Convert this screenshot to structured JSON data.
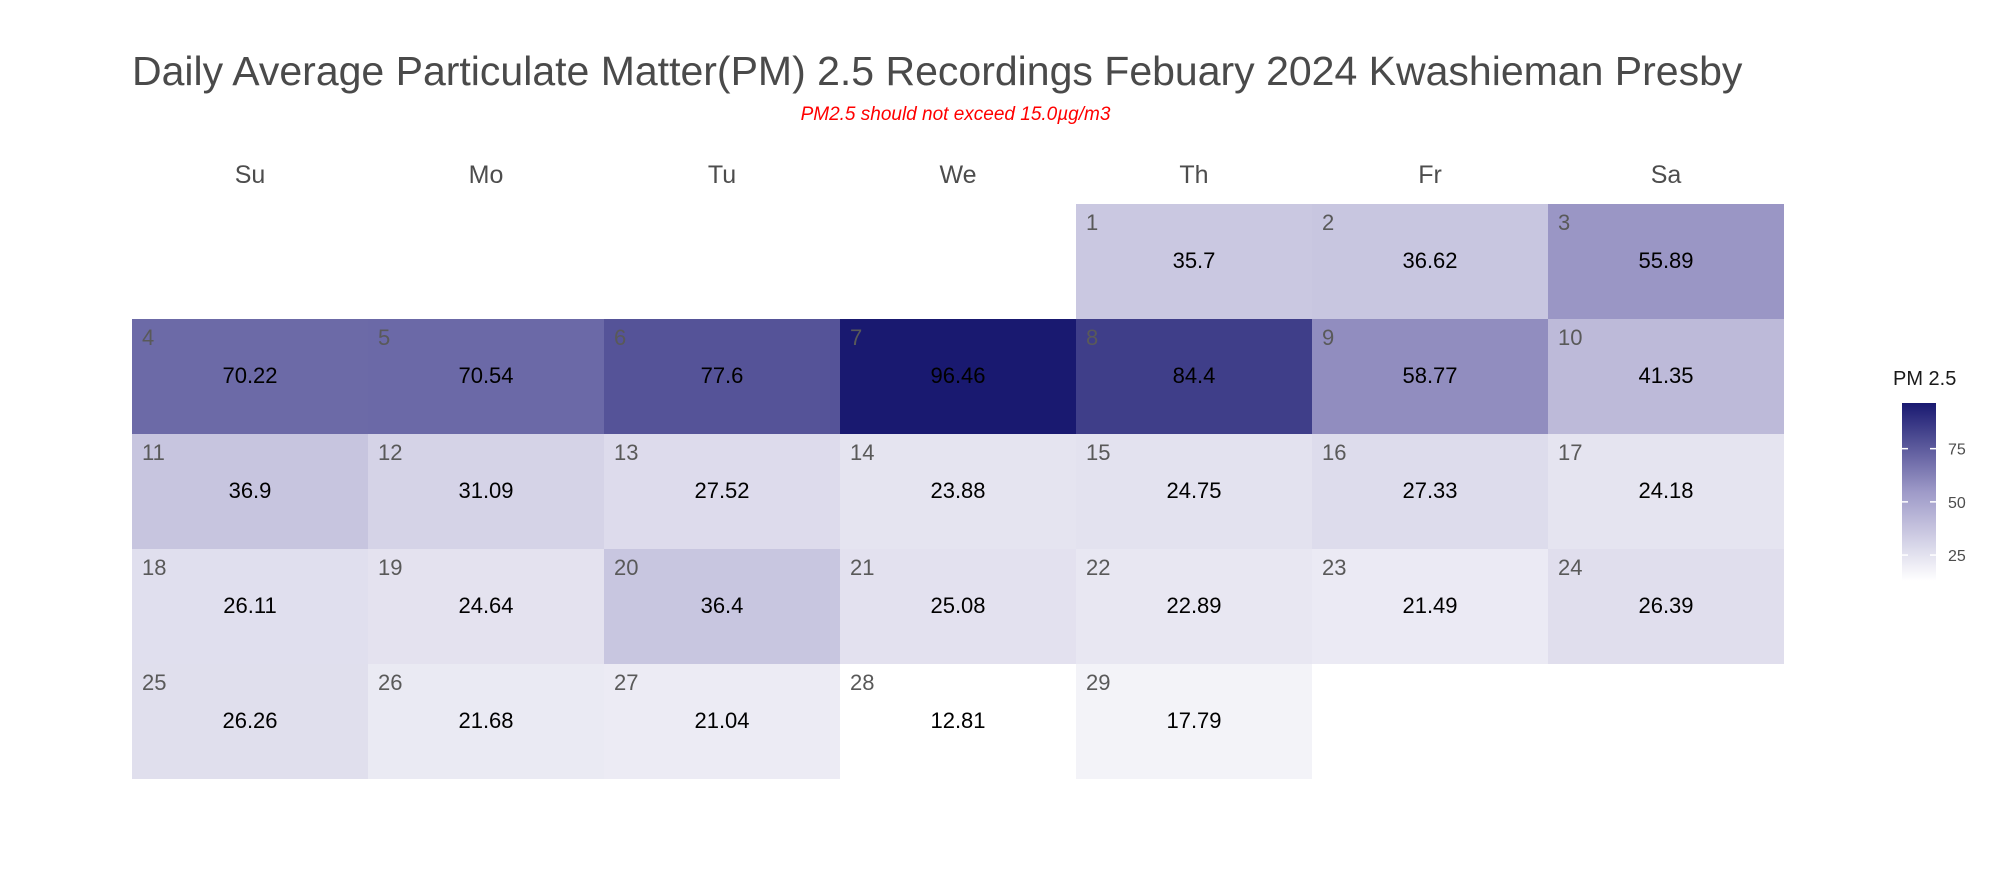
{
  "title": "Daily Average Particulate Matter(PM) 2.5 Recordings Febuary 2024 Kwashieman Presby",
  "subtitle": "PM2.5 should not exceed 15.0µg/m3",
  "legend": {
    "title": "PM 2.5",
    "ticks": [
      25,
      50,
      75
    ]
  },
  "colors": {
    "low": "#ffffff",
    "high": "#191970",
    "subtitle": "#ff0000"
  },
  "chart_data": {
    "type": "heatmap",
    "layout": "calendar",
    "month": "February 2024",
    "weekdays": [
      "Su",
      "Mo",
      "Tu",
      "We",
      "Th",
      "Fr",
      "Sa"
    ],
    "first_weekday_index": 4,
    "days": [
      1,
      2,
      3,
      4,
      5,
      6,
      7,
      8,
      9,
      10,
      11,
      12,
      13,
      14,
      15,
      16,
      17,
      18,
      19,
      20,
      21,
      22,
      23,
      24,
      25,
      26,
      27,
      28,
      29
    ],
    "values": [
      35.7,
      36.62,
      55.89,
      70.22,
      70.54,
      77.6,
      96.46,
      84.4,
      58.77,
      41.35,
      36.9,
      31.09,
      27.52,
      23.88,
      24.75,
      27.33,
      24.18,
      26.11,
      24.64,
      36.4,
      25.08,
      22.89,
      21.49,
      26.39,
      26.26,
      21.68,
      21.04,
      12.81,
      17.79
    ],
    "color_scale": {
      "min": 12.81,
      "max": 96.46
    }
  }
}
